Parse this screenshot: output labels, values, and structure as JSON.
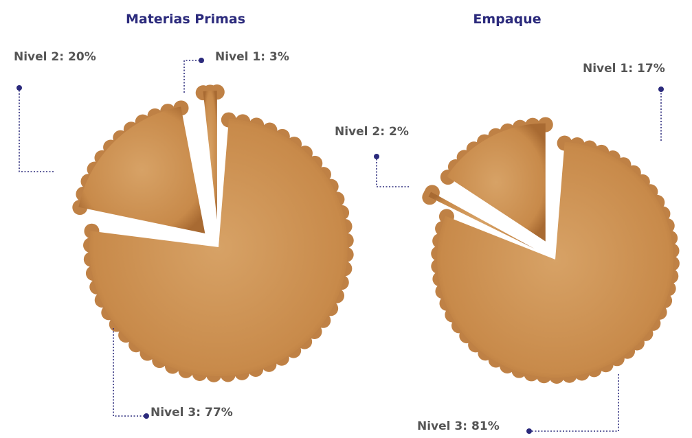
{
  "chart_data": [
    {
      "type": "pie",
      "title": "Materias Primas",
      "color": "#c98b4b",
      "categories": [
        "Nivel 1:",
        "Nivel 2:",
        "Nivel 3:"
      ],
      "values": [
        3,
        20,
        77
      ],
      "value_labels": [
        "3%",
        "20%",
        "77%"
      ]
    },
    {
      "type": "pie",
      "title": "Empaque",
      "color": "#c98b4b",
      "categories": [
        "Nivel 1:",
        "Nivel 2:",
        "Nivel 3:"
      ],
      "values": [
        17,
        2,
        81
      ],
      "value_labels": [
        "17%",
        "2%",
        "81%"
      ]
    }
  ]
}
